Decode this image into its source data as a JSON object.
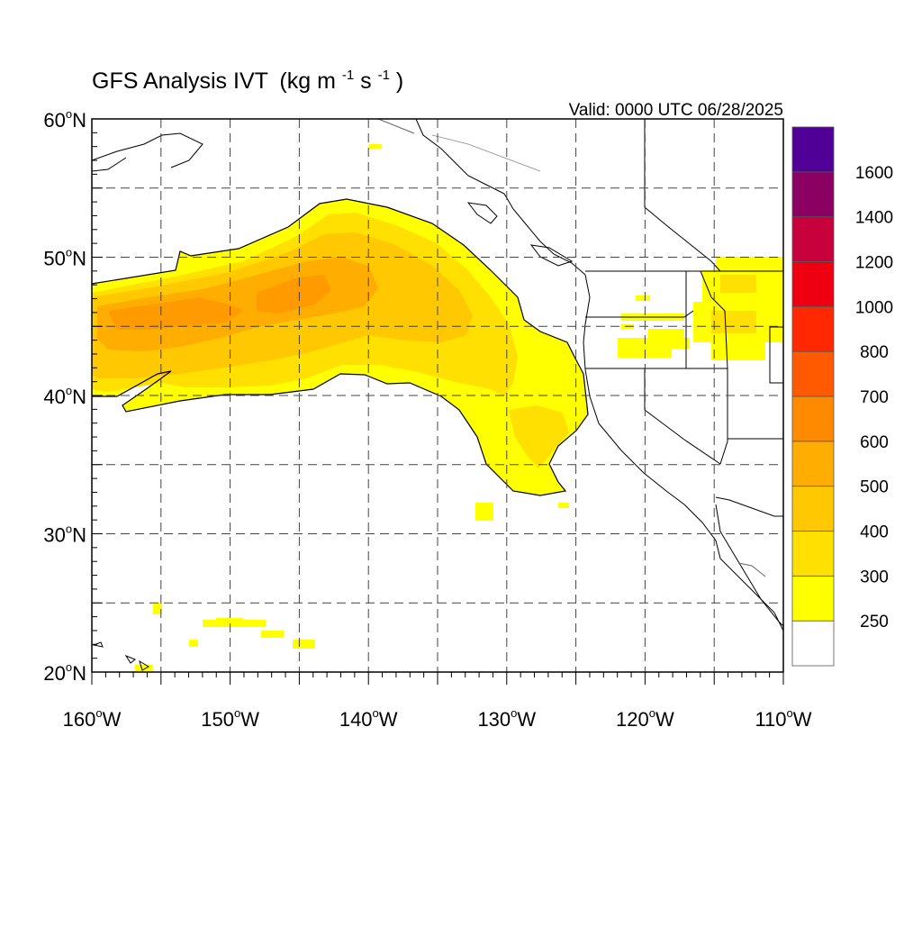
{
  "title": {
    "main": "GFS Analysis IVT",
    "unit_prefix": "(kg m",
    "unit_exp1": "-1",
    "unit_mid": "s",
    "unit_exp2": "-1",
    "unit_suffix": ")"
  },
  "valid_text": "Valid: 0000 UTC 06/28/2025",
  "map": {
    "lon_range": [
      -160,
      -110
    ],
    "lat_range": [
      20,
      60
    ],
    "lon_labels": [
      {
        "lon": -160,
        "text": "160",
        "hemi": "W"
      },
      {
        "lon": -150,
        "text": "150",
        "hemi": "W"
      },
      {
        "lon": -140,
        "text": "140",
        "hemi": "W"
      },
      {
        "lon": -130,
        "text": "130",
        "hemi": "W"
      },
      {
        "lon": -120,
        "text": "120",
        "hemi": "W"
      },
      {
        "lon": -110,
        "text": "110",
        "hemi": "W"
      }
    ],
    "lat_labels": [
      {
        "lat": 20,
        "text": "20",
        "hemi": "N"
      },
      {
        "lat": 30,
        "text": "30",
        "hemi": "N"
      },
      {
        "lat": 40,
        "text": "40",
        "hemi": "N"
      },
      {
        "lat": 50,
        "text": "50",
        "hemi": "N"
      },
      {
        "lat": 60,
        "text": "60",
        "hemi": "N"
      }
    ],
    "gridline_lons": [
      -155,
      -150,
      -145,
      -140,
      -135,
      -130,
      -125,
      -120,
      -115
    ],
    "gridline_lats": [
      25,
      30,
      35,
      40,
      45,
      50,
      55
    ],
    "grid": "dashed"
  },
  "colorbar": {
    "labels": [
      "250",
      "300",
      "400",
      "500",
      "600",
      "700",
      "800",
      "1000",
      "1200",
      "1400",
      "1600"
    ],
    "colors": [
      "#ffffff",
      "#ffff00",
      "#ffe000",
      "#ffc800",
      "#ffad00",
      "#ff8a00",
      "#ff5a00",
      "#ff2800",
      "#ee0010",
      "#c8003c",
      "#8c0064",
      "#500096"
    ]
  }
}
